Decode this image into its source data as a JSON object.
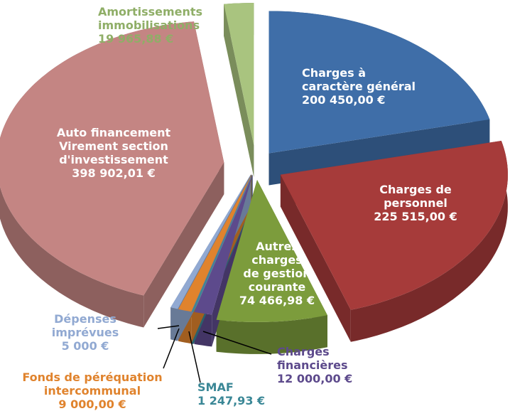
{
  "chart_data": {
    "type": "pie3d",
    "categories": [
      "Charges à\ncaractère général",
      "Charges de\npersonnel",
      "Autres\ncharges\nde gestion\ncourante",
      "Charges\nfinancières",
      "SMAF",
      "Fonds de péréquation\nintercommunal",
      "Dépenses\nimprévues",
      "Auto financement\nVirement section\nd'investissement",
      "Amortissements\nimmobilisations"
    ],
    "values": [
      200450,
      225515,
      74466.98,
      12000,
      1247.93,
      9000,
      5000,
      398902.01,
      19965.88
    ],
    "value_labels": [
      "200 450,00 €",
      "225 515,00 €",
      "74 466,98 €",
      "12 000,00 €",
      "1 247,93 €",
      "9 000,00 €",
      "5 000 €",
      "398 902,01 €",
      "19 965,88 €"
    ],
    "colors": [
      "#3f6ea8",
      "#a63b3a",
      "#7c9c3c",
      "#5d4a8c",
      "#3a8796",
      "#e0832d",
      "#91a9d2",
      "#c48583",
      "#a9c47f"
    ]
  }
}
